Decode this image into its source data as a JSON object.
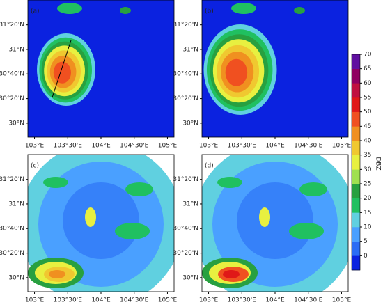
{
  "chart_data": {
    "type": "map",
    "panels": [
      {
        "label": "(a)"
      },
      {
        "label": "(b)"
      },
      {
        "label": "(c)"
      },
      {
        "label": "(d)"
      }
    ],
    "xlim": [
      102.9,
      105.1
    ],
    "ylim": [
      29.81,
      31.67
    ],
    "xticks": [
      {
        "value": 103,
        "label": "103°E"
      },
      {
        "value": 103.5,
        "label": "103°30'E"
      },
      {
        "value": 104,
        "label": "104°E"
      },
      {
        "value": 104.5,
        "label": "104°30'E"
      },
      {
        "value": 105,
        "label": "105°E"
      }
    ],
    "yticks": [
      {
        "value": 30,
        "label": "30°N"
      },
      {
        "value": 30.333,
        "label": "30°20'N"
      },
      {
        "value": 30.667,
        "label": "30°40'N"
      },
      {
        "value": 31,
        "label": "31°N"
      },
      {
        "value": 31.333,
        "label": "31°20'N"
      }
    ],
    "colorbar": {
      "label": "DBZ",
      "lim": [
        -5,
        70
      ],
      "ticks": [
        0,
        5,
        10,
        15,
        20,
        25,
        30,
        35,
        40,
        45,
        50,
        55,
        60,
        65,
        70
      ],
      "colors": [
        "#0b22e0",
        "#2a6cf5",
        "#4aa0ff",
        "#60d0e0",
        "#20c060",
        "#28a040",
        "#a0e050",
        "#e8f040",
        "#f0c830",
        "#f09020",
        "#f05020",
        "#e01818",
        "#c01040",
        "#900060",
        "#6010a0"
      ]
    }
  }
}
